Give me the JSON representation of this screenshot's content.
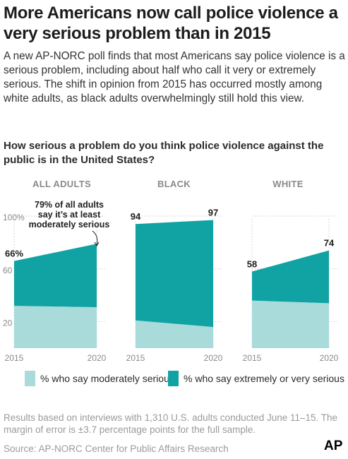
{
  "headline": "More Americans now call police violence a very serious problem than in 2015",
  "intro": "A new AP-NORC poll finds that most Americans say police violence is a serious problem, including about half who call it very or extremely serious. The shift in opinion from 2015 has occurred mostly among white adults, as black adults overwhelmingly still hold this view.",
  "question": "How serious a problem do you think police violence against the public is in the United States?",
  "annotation": [
    "79% of all adults",
    "say it’s at least",
    "moderately serious"
  ],
  "legend": {
    "moderately": "% who say moderately serious",
    "extreme": "% who say extremely or very serious"
  },
  "colors": {
    "moderately": "#a9dbdb",
    "extreme": "#11a3a3",
    "grid": "#bdbdbd"
  },
  "footnote": "Results based on interviews with 1,310 U.S. adults conducted June 11–15. The margin of error is ±3.7 percentage points for the full sample.",
  "source": "Source:  AP-NORC Center for Public Affairs Research",
  "logo": "AP",
  "chart_data": [
    {
      "type": "area",
      "title": "ALL ADULTS",
      "x": [
        "2015",
        "2020"
      ],
      "series": [
        {
          "name": "% who say moderately serious",
          "values": [
            32,
            31
          ]
        },
        {
          "name": "% who say extremely or very serious",
          "values": [
            34,
            48
          ]
        }
      ],
      "total_labels": [
        "66%",
        ""
      ],
      "y_ticks": [
        "100%",
        "60",
        "20"
      ],
      "ylim": [
        0,
        100
      ]
    },
    {
      "type": "area",
      "title": "BLACK",
      "x": [
        "2015",
        "2020"
      ],
      "series": [
        {
          "name": "% who say moderately serious",
          "values": [
            21,
            16
          ]
        },
        {
          "name": "% who say extremely or very serious",
          "values": [
            73,
            81
          ]
        }
      ],
      "total_labels": [
        "94",
        "97"
      ],
      "ylim": [
        0,
        100
      ]
    },
    {
      "type": "area",
      "title": "WHITE",
      "x": [
        "2015",
        "2020"
      ],
      "series": [
        {
          "name": "% who say moderately serious",
          "values": [
            36,
            34
          ]
        },
        {
          "name": "% who say extremely or very serious",
          "values": [
            22,
            40
          ]
        }
      ],
      "total_labels": [
        "58",
        "74"
      ],
      "ylim": [
        0,
        100
      ]
    }
  ]
}
